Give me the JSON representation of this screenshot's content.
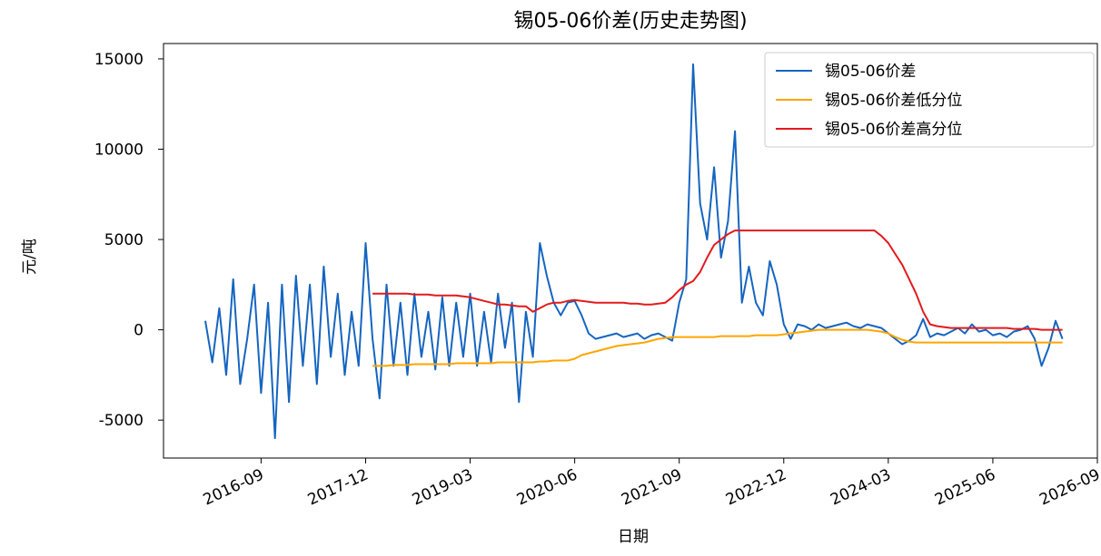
{
  "chart_data": {
    "type": "line",
    "title": "锡05-06价差(历史走势图)",
    "x_label": "日期",
    "y_label": "元/吨",
    "x": [
      "2016-01",
      "2016-02",
      "2016-03",
      "2016-04",
      "2016-05",
      "2016-06",
      "2016-07",
      "2016-08",
      "2016-09",
      "2016-10",
      "2016-11",
      "2016-12",
      "2017-01",
      "2017-02",
      "2017-03",
      "2017-04",
      "2017-05",
      "2017-06",
      "2017-07",
      "2017-08",
      "2017-09",
      "2017-10",
      "2017-11",
      "2017-12",
      "2018-01",
      "2018-02",
      "2018-03",
      "2018-04",
      "2018-05",
      "2018-06",
      "2018-07",
      "2018-08",
      "2018-09",
      "2018-10",
      "2018-11",
      "2018-12",
      "2019-01",
      "2019-02",
      "2019-03",
      "2019-04",
      "2019-05",
      "2019-06",
      "2019-07",
      "2019-08",
      "2019-09",
      "2019-10",
      "2019-11",
      "2019-12",
      "2020-01",
      "2020-02",
      "2020-03",
      "2020-04",
      "2020-05",
      "2020-06",
      "2020-07",
      "2020-08",
      "2020-09",
      "2020-10",
      "2020-11",
      "2020-12",
      "2021-01",
      "2021-02",
      "2021-03",
      "2021-04",
      "2021-05",
      "2021-06",
      "2021-07",
      "2021-08",
      "2021-09",
      "2021-10",
      "2021-11",
      "2021-12",
      "2022-01",
      "2022-02",
      "2022-03",
      "2022-04",
      "2022-05",
      "2022-06",
      "2022-07",
      "2022-08",
      "2022-09",
      "2022-10",
      "2022-11",
      "2022-12",
      "2023-01",
      "2023-02",
      "2023-03",
      "2023-04",
      "2023-05",
      "2023-06",
      "2023-07",
      "2023-08",
      "2023-09",
      "2023-10",
      "2023-11",
      "2023-12",
      "2024-01",
      "2024-02",
      "2024-03",
      "2024-04",
      "2024-05",
      "2024-06",
      "2024-07",
      "2024-08",
      "2024-09",
      "2024-10",
      "2024-11",
      "2024-12",
      "2025-01",
      "2025-02",
      "2025-03",
      "2025-04",
      "2025-05",
      "2025-06",
      "2025-07",
      "2025-08",
      "2025-09",
      "2025-10",
      "2025-11",
      "2025-12",
      "2026-01",
      "2026-02",
      "2026-03",
      "2026-04"
    ],
    "series": [
      {
        "name": "锡05-06价差",
        "color": "#1565c0",
        "values": [
          500,
          -1800,
          1200,
          -2500,
          2800,
          -3000,
          -500,
          2500,
          -3500,
          1500,
          -6000,
          2500,
          -4000,
          3000,
          -2000,
          2500,
          -3000,
          3500,
          -1500,
          2000,
          -2500,
          1000,
          -2000,
          4800,
          -500,
          -3800,
          2500,
          -2000,
          1500,
          -2500,
          2000,
          -1500,
          1000,
          -2200,
          1800,
          -2000,
          1500,
          -1500,
          2000,
          -2000,
          1000,
          -1800,
          2000,
          -1000,
          1500,
          -4000,
          1000,
          -1500,
          4800,
          3000,
          1500,
          800,
          1500,
          1600,
          800,
          -200,
          -500,
          -400,
          -300,
          -200,
          -400,
          -300,
          -200,
          -500,
          -300,
          -200,
          -400,
          -600,
          1500,
          2800,
          14700,
          7000,
          5000,
          9000,
          4000,
          6000,
          11000,
          1500,
          3500,
          1500,
          800,
          3800,
          2500,
          300,
          -500,
          300,
          200,
          0,
          300,
          100,
          200,
          300,
          400,
          200,
          100,
          300,
          200,
          100,
          -200,
          -500,
          -800,
          -600,
          -300,
          600,
          -400,
          -200,
          -300,
          -100,
          100,
          -200,
          300,
          -100,
          0,
          -300,
          -200,
          -400,
          -100,
          0,
          200,
          -500,
          -2000,
          -1000,
          500,
          -500
        ]
      },
      {
        "name": "锡05-06价差低分位",
        "color": "#ffa500",
        "values": [
          null,
          null,
          null,
          null,
          null,
          null,
          null,
          null,
          null,
          null,
          null,
          null,
          null,
          null,
          null,
          null,
          null,
          null,
          null,
          null,
          null,
          null,
          null,
          null,
          -2000,
          -2000,
          -2000,
          -1950,
          -1950,
          -1950,
          -1900,
          -1900,
          -1900,
          -1900,
          -1900,
          -1900,
          -1850,
          -1850,
          -1850,
          -1850,
          -1850,
          -1850,
          -1800,
          -1800,
          -1800,
          -1800,
          -1800,
          -1800,
          -1750,
          -1750,
          -1700,
          -1700,
          -1700,
          -1600,
          -1400,
          -1300,
          -1200,
          -1100,
          -1000,
          -900,
          -850,
          -800,
          -750,
          -700,
          -600,
          -500,
          -450,
          -400,
          -400,
          -400,
          -400,
          -400,
          -400,
          -400,
          -350,
          -350,
          -350,
          -350,
          -350,
          -300,
          -300,
          -300,
          -300,
          -250,
          -200,
          -150,
          -100,
          -50,
          0,
          0,
          0,
          0,
          0,
          0,
          0,
          0,
          -50,
          -100,
          -200,
          -400,
          -550,
          -650,
          -700,
          -700,
          -700,
          -700,
          -700,
          -700,
          -700,
          -700,
          -700,
          -700,
          -700,
          -700,
          -700,
          -700,
          -700,
          -700,
          -700,
          -700,
          -700,
          -700,
          -700,
          -700
        ]
      },
      {
        "name": "锡05-06价差高分位",
        "color": "#e31a1c",
        "values": [
          null,
          null,
          null,
          null,
          null,
          null,
          null,
          null,
          null,
          null,
          null,
          null,
          null,
          null,
          null,
          null,
          null,
          null,
          null,
          null,
          null,
          null,
          null,
          null,
          2000,
          2000,
          2000,
          2000,
          2000,
          2000,
          1950,
          1950,
          1950,
          1900,
          1900,
          1900,
          1900,
          1850,
          1800,
          1700,
          1600,
          1500,
          1400,
          1400,
          1350,
          1300,
          1300,
          1000,
          1200,
          1400,
          1500,
          1500,
          1600,
          1650,
          1600,
          1550,
          1500,
          1500,
          1500,
          1500,
          1500,
          1450,
          1450,
          1400,
          1400,
          1450,
          1500,
          1800,
          2200,
          2500,
          2700,
          3200,
          4000,
          4700,
          5000,
          5300,
          5500,
          5500,
          5500,
          5500,
          5500,
          5500,
          5500,
          5500,
          5500,
          5500,
          5500,
          5500,
          5500,
          5500,
          5500,
          5500,
          5500,
          5500,
          5500,
          5500,
          5500,
          5200,
          4800,
          4200,
          3600,
          2800,
          2000,
          1000,
          300,
          200,
          150,
          100,
          100,
          100,
          100,
          100,
          100,
          100,
          100,
          100,
          50,
          50,
          50,
          50,
          0,
          0,
          0,
          0
        ]
      }
    ],
    "xlim": [
      "2015-07",
      "2026-09"
    ],
    "xticks": [
      "2016-09",
      "2017-12",
      "2019-03",
      "2020-06",
      "2021-09",
      "2022-12",
      "2024-03",
      "2025-06",
      "2026-09"
    ],
    "ylim": [
      -7100,
      15850
    ],
    "yticks": [
      -5000,
      0,
      5000,
      10000,
      15000
    ],
    "legend": "upper right"
  }
}
